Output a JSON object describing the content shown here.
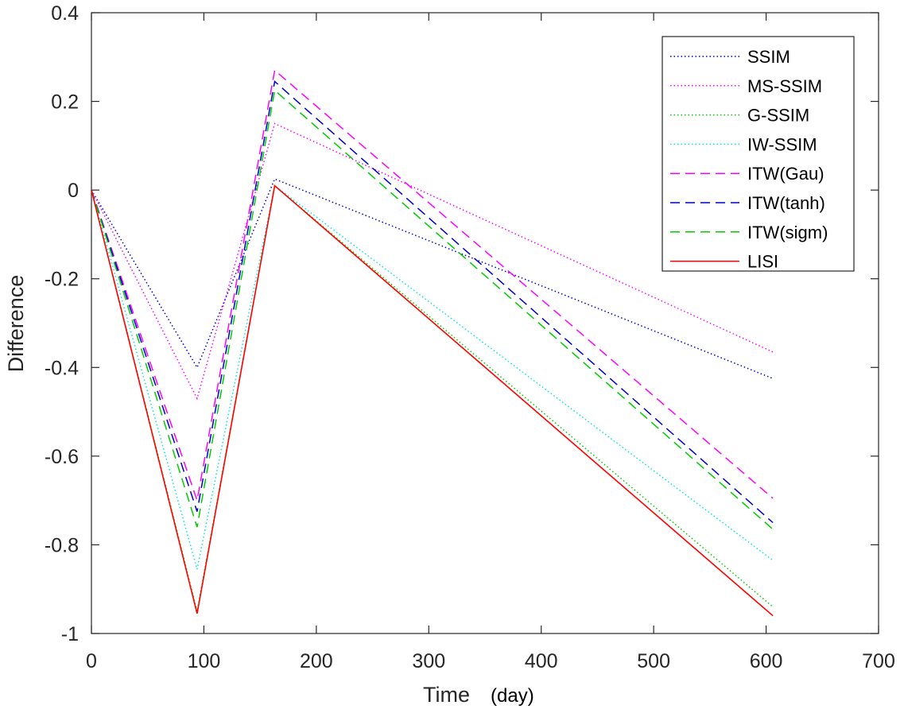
{
  "chart_data": {
    "type": "line",
    "title": "",
    "xlabel": "Time",
    "xlabel_unit": "(day)",
    "ylabel": "Difference",
    "xlim": [
      0,
      700
    ],
    "ylim": [
      -1,
      0.4
    ],
    "xticks": [
      0,
      100,
      200,
      300,
      400,
      500,
      600,
      700
    ],
    "yticks": [
      0.4,
      0.2,
      0,
      -0.2,
      -0.4,
      -0.6,
      -0.8,
      -1
    ],
    "xtick_labels": [
      "0",
      "100",
      "200",
      "300",
      "400",
      "500",
      "600",
      "700"
    ],
    "ytick_labels": [
      "0.4",
      "0.2",
      "0",
      "-0.2",
      "-0.4",
      "-0.6",
      "-0.8",
      "-1"
    ],
    "grid": false,
    "legend_position": "top-right",
    "x": [
      0,
      94,
      163,
      606
    ],
    "series": [
      {
        "name": "SSIM",
        "values": [
          0,
          -0.4,
          0.025,
          -0.425
        ],
        "color": "#0000cc",
        "style": "dotted"
      },
      {
        "name": "MS-SSIM",
        "values": [
          0,
          -0.47,
          0.15,
          -0.365
        ],
        "color": "#ff00ff",
        "style": "dotted"
      },
      {
        "name": "G-SSIM",
        "values": [
          0,
          -0.95,
          0.01,
          -0.94
        ],
        "color": "#00cc00",
        "style": "dotted"
      },
      {
        "name": "IW-SSIM",
        "values": [
          0,
          -0.855,
          0.01,
          -0.835
        ],
        "color": "#00e5e5",
        "style": "dotted"
      },
      {
        "name": "ITW(Gau)",
        "values": [
          0,
          -0.7,
          0.27,
          -0.695
        ],
        "color": "#ff00ff",
        "style": "dashed"
      },
      {
        "name": "ITW(tanh)",
        "values": [
          0,
          -0.725,
          0.245,
          -0.75
        ],
        "color": "#0000cc",
        "style": "dashed"
      },
      {
        "name": "ITW(sigm)",
        "values": [
          0,
          -0.76,
          0.225,
          -0.765
        ],
        "color": "#00cc00",
        "style": "dashed"
      },
      {
        "name": "LISI",
        "values": [
          0,
          -0.955,
          0.01,
          -0.96
        ],
        "color": "#ff0000",
        "style": "solid"
      }
    ]
  }
}
